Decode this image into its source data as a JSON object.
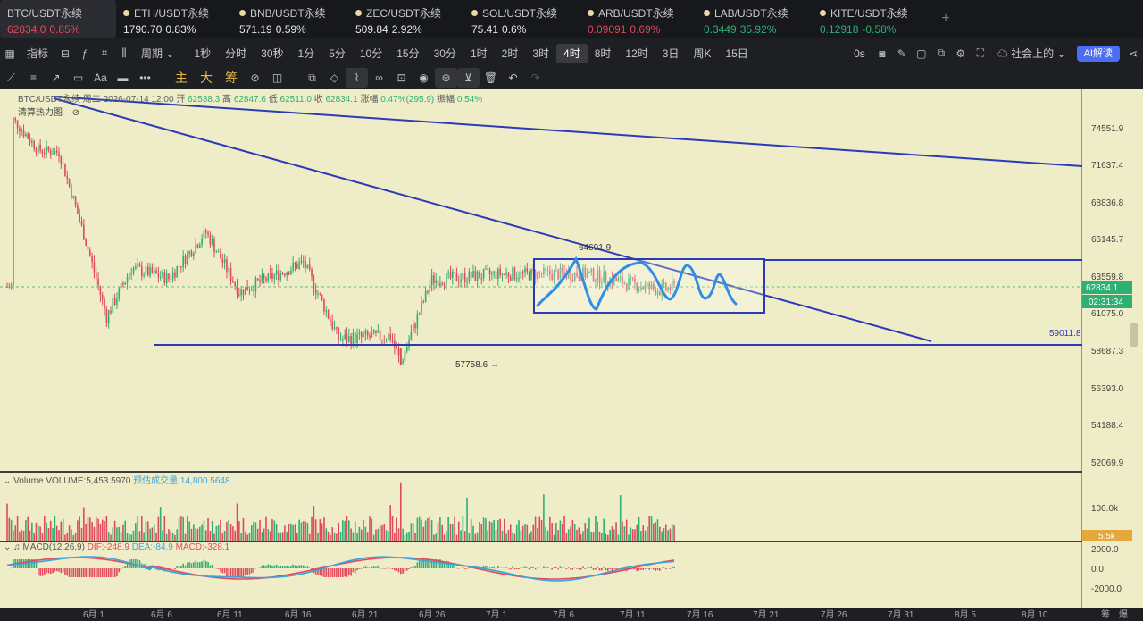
{
  "tickers": [
    {
      "name": "BTC/USDT永续",
      "price": "62834.0",
      "change": "0.85%",
      "dir": "down",
      "active": true
    },
    {
      "name": "ETH/USDT永续",
      "price": "1790.70",
      "change": "0.83%",
      "dir": "flat"
    },
    {
      "name": "BNB/USDT永续",
      "price": "571.19",
      "change": "0.59%",
      "dir": "flat"
    },
    {
      "name": "ZEC/USDT永续",
      "price": "509.84",
      "change": "2.92%",
      "dir": "flat"
    },
    {
      "name": "SOL/USDT永续",
      "price": "75.41",
      "change": "0.6%",
      "dir": "flat"
    },
    {
      "name": "ARB/USDT永续",
      "price": "0.09091",
      "change": "0.69%",
      "dir": "down"
    },
    {
      "name": "LAB/USDT永续",
      "price": "0.3449",
      "change": "35.92%",
      "dir": "up"
    },
    {
      "name": "KITE/USDT永续",
      "price": "0.12918",
      "change": "-0.58%",
      "dir": "up"
    }
  ],
  "toolbar": {
    "indicator_label": "指标",
    "period_label": "周期",
    "intervals": [
      "1秒",
      "分时",
      "30秒",
      "1分",
      "5分",
      "10分",
      "15分",
      "30分",
      "1时",
      "2时",
      "3时",
      "4时",
      "8时",
      "12时",
      "3日",
      "周K",
      "15日"
    ],
    "selected_interval": "4时",
    "countdown_label": "0s",
    "community_label": "社会上的",
    "ai_label": "AI解读"
  },
  "drawbar": {
    "main": "主",
    "big": "大",
    "chip": "筹"
  },
  "legend": {
    "pair": "BTC/USDT永续",
    "weekday": "周二",
    "datetime": "2026-07-14 12:00",
    "open_label": "开",
    "open": "62538.3",
    "high_label": "高",
    "high": "62847.6",
    "low_label": "低",
    "low": "62511.0",
    "close_label": "收",
    "close": "62834.1",
    "change_label": "涨幅",
    "change": "0.47%(295.9)",
    "amp_label": "振幅",
    "amp": "0.54%",
    "heatmap_label": "清算热力图"
  },
  "price_axis": [
    "74551.9",
    "71637.4",
    "68836.8",
    "66145.7",
    "63559.8",
    "61075.0",
    "58687.3",
    "56393.0",
    "54188.4",
    "52069.9"
  ],
  "current_price": "62834.1",
  "countdown": "02:31:34",
  "line_label": "59011.8",
  "annotations": {
    "high": "64691.9",
    "low": "57758.6"
  },
  "volume": {
    "label": "Volume",
    "value_label": "VOLUME:5,453.5970",
    "est_label": "预估成交量:14,800.5648",
    "axis": "100.0k",
    "current": "5.5k"
  },
  "macd": {
    "label": "MACD(12,26,9)",
    "dif": "DIF:-248.9",
    "dea": "DEA:-84.9",
    "macd": "MACD:-328.1",
    "axis": [
      "2000.0",
      "0.0",
      "-2000.0"
    ]
  },
  "date_axis": [
    "6月 1",
    "6月 6",
    "6月 11",
    "6月 16",
    "6月 21",
    "6月 26",
    "7月 1",
    "7月 6",
    "7月 11",
    "7月 16",
    "7月 21",
    "7月 26",
    "7月 31",
    "8月 5",
    "8月 10"
  ],
  "corner_labels": [
    "筹",
    "爆"
  ],
  "colors": {
    "chart_bg": "#efedc8",
    "up": "#2eaf73",
    "down": "#e04a5a",
    "trendline": "#2b3bb5",
    "pattern": "#2f8fe8",
    "price_tag": "#2eaf73",
    "vol_tag": "#e5a83a"
  }
}
